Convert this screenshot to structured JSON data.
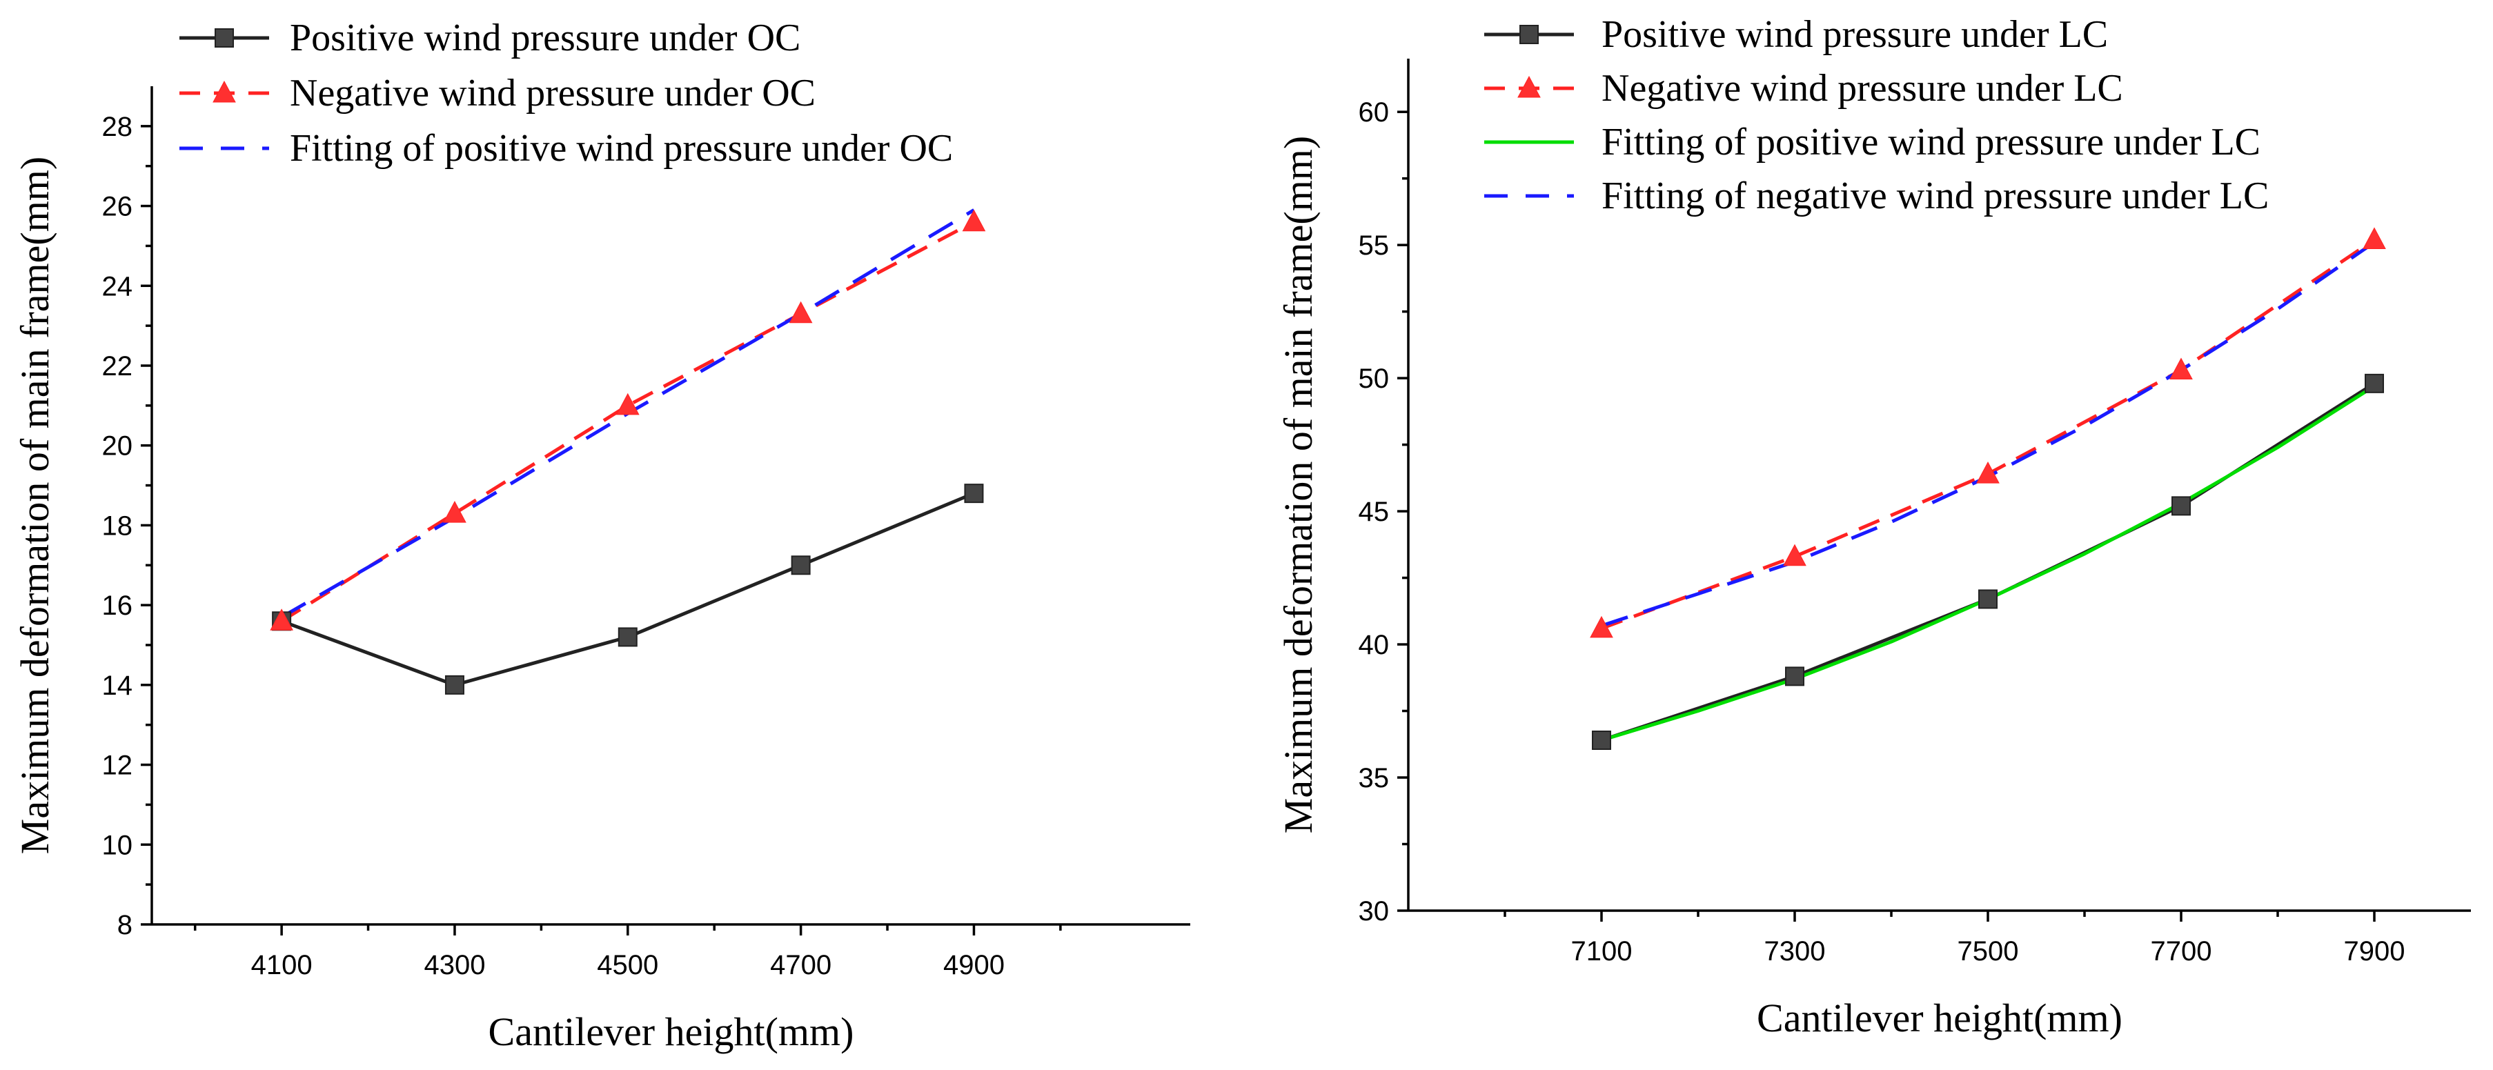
{
  "chart_data": [
    {
      "type": "line",
      "xlabel": "Cantilever height(mm)",
      "ylabel": "Maximum deformation of main frame(mm)",
      "xlim": [
        3950,
        5150
      ],
      "ylim": [
        8,
        29
      ],
      "categories": [
        4100,
        4300,
        4500,
        4700,
        4900
      ],
      "x_ticks": [
        4100,
        4300,
        4500,
        4700,
        4900
      ],
      "y_ticks": [
        8,
        10,
        12,
        14,
        16,
        18,
        20,
        22,
        24,
        26,
        28
      ],
      "legend_position": "top-right",
      "series": [
        {
          "name": "Positive wind pressure under OC",
          "x": [
            4100,
            4300,
            4500,
            4700,
            4900
          ],
          "values": [
            15.6,
            14.0,
            15.2,
            17.0,
            18.8
          ],
          "color": "#222222",
          "dash": "solid",
          "marker": "square"
        },
        {
          "name": "Negative wind pressure under OC",
          "x": [
            4100,
            4300,
            4500,
            4700,
            4900
          ],
          "values": [
            15.6,
            18.3,
            21.0,
            23.3,
            25.6
          ],
          "color": "#ff2222",
          "dash": "dashed",
          "marker": "triangle"
        },
        {
          "name": "Fitting of positive wind pressure under OC",
          "x": [
            4100,
            4300,
            4500,
            4700,
            4900
          ],
          "values": [
            15.7,
            18.2,
            20.8,
            23.3,
            25.9
          ],
          "color": "#1a1aff",
          "dash": "dashed",
          "marker": "none"
        }
      ]
    },
    {
      "type": "line",
      "xlabel": "Cantilever height(mm)",
      "ylabel": "Maximum deformation of main frame(mm)",
      "xlim": [
        6900,
        8000
      ],
      "ylim": [
        30,
        62
      ],
      "categories": [
        7100,
        7300,
        7500,
        7700,
        7900
      ],
      "x_ticks": [
        7100,
        7300,
        7500,
        7700,
        7900
      ],
      "y_ticks": [
        30,
        35,
        40,
        45,
        50,
        55,
        60
      ],
      "legend_position": "top-right",
      "series": [
        {
          "name": "Positive wind pressure under LC",
          "x": [
            7100,
            7300,
            7500,
            7700,
            7900
          ],
          "values": [
            36.4,
            38.8,
            41.7,
            45.2,
            49.8
          ],
          "color": "#222222",
          "dash": "solid",
          "marker": "square"
        },
        {
          "name": "Negative wind pressure under LC",
          "x": [
            7100,
            7300,
            7500,
            7700,
            7900
          ],
          "values": [
            40.6,
            43.3,
            46.4,
            50.3,
            55.2
          ],
          "color": "#ff2222",
          "dash": "dashed",
          "marker": "triangle"
        },
        {
          "name": "Fitting of positive wind pressure under LC",
          "x": [
            7100,
            7200,
            7300,
            7400,
            7500,
            7600,
            7700,
            7800,
            7900
          ],
          "values": [
            36.4,
            37.5,
            38.7,
            40.1,
            41.7,
            43.4,
            45.3,
            47.4,
            49.7
          ],
          "color": "#00dd00",
          "dash": "solid",
          "marker": "none"
        },
        {
          "name": "Fitting of negative wind pressure under LC",
          "x": [
            7100,
            7200,
            7300,
            7400,
            7500,
            7600,
            7700,
            7800,
            7900
          ],
          "values": [
            40.7,
            41.9,
            43.1,
            44.6,
            46.3,
            48.2,
            50.3,
            52.6,
            55.1
          ],
          "color": "#1a1aff",
          "dash": "dashed",
          "marker": "none"
        }
      ]
    }
  ]
}
